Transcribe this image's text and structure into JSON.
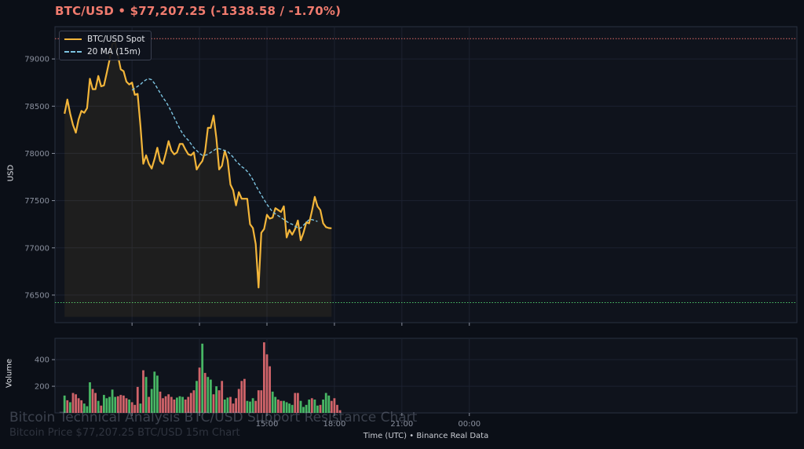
{
  "header": {
    "title": "BTC/USD  •  $77,207.25  (-1338.58 / -1.70%)",
    "color": "#f07b6e"
  },
  "legend": {
    "items": [
      {
        "label": "BTC/USD Spot",
        "style": "solid",
        "color": "#f2b53a"
      },
      {
        "label": "20 MA (15m)",
        "style": "dashed",
        "color": "#7cc3e0"
      }
    ]
  },
  "axes": {
    "price_ylabel": "USD",
    "volume_ylabel": "Volume",
    "xlabel": "Time (UTC)  •  Binance Real Data"
  },
  "watermark": {
    "title": "Bitcoin Technical Analysis BTC/USD Support Resistance Chart",
    "subtitle": "Bitcoin Price $77,207.25 BTC/USD 15m Chart"
  },
  "colors": {
    "background": "#0b0f17",
    "panel": "#0f131c",
    "grid": "#1c2230",
    "price": "#f2b53a",
    "ma": "#7cc3e0",
    "resistance": "#e06a66",
    "support": "#4cc46a",
    "volume_up": "#4cc46a",
    "volume_down": "#e06a70"
  },
  "chart_data": [
    {
      "type": "line",
      "title": "",
      "ylabel": "USD",
      "ylim": [
        76250,
        79300
      ],
      "y_ticks": [
        76500,
        77000,
        77500,
        78000,
        78500,
        79000
      ],
      "x_ticks": [
        {
          "index": 27,
          "label": ""
        },
        {
          "index": 51,
          "label": ""
        },
        {
          "index": 75,
          "label": "15:00"
        },
        {
          "index": 99,
          "label": "18:00"
        },
        {
          "index": 123,
          "label": "21:00"
        },
        {
          "index": 147,
          "label": "00:00"
        }
      ],
      "grid": true,
      "legend_position": "top-left",
      "resistance": 79215,
      "support": 76420,
      "fill_baseline": 76270,
      "series": [
        {
          "name": "BTC/USD Spot",
          "start_index": 3,
          "values": [
            78420,
            78570,
            78420,
            78300,
            78220,
            78360,
            78450,
            78430,
            78480,
            78790,
            78680,
            78680,
            78820,
            78710,
            78720,
            78850,
            78990,
            79160,
            79175,
            79030,
            78890,
            78870,
            78760,
            78730,
            78750,
            78620,
            78630,
            78290,
            77890,
            77980,
            77890,
            77840,
            77940,
            78060,
            77920,
            77890,
            78000,
            78130,
            78030,
            77990,
            78010,
            78100,
            78100,
            78040,
            77990,
            77980,
            78010,
            77830,
            77880,
            77920,
            78020,
            78270,
            78270,
            78400,
            78160,
            77830,
            77870,
            78030,
            77930,
            77670,
            77610,
            77450,
            77590,
            77520,
            77520,
            77520,
            77250,
            77210,
            77040,
            76580,
            77160,
            77200,
            77350,
            77310,
            77320,
            77420,
            77400,
            77380,
            77440,
            77110,
            77190,
            77140,
            77200,
            77290,
            77080,
            77160,
            77270,
            77260,
            77390,
            77540,
            77440,
            77400,
            77260,
            77220,
            77210,
            77207.25
          ]
        },
        {
          "name": "20 MA (15m)",
          "start_index": 27,
          "values": [
            78670,
            78690,
            78710,
            78730,
            78760,
            78780,
            78790,
            78780,
            78740,
            78690,
            78640,
            78590,
            78550,
            78500,
            78440,
            78380,
            78320,
            78260,
            78210,
            78170,
            78140,
            78100,
            78060,
            78030,
            78000,
            77980,
            77980,
            77990,
            78010,
            78030,
            78050,
            78050,
            78040,
            78030,
            78020,
            77990,
            77960,
            77920,
            77890,
            77860,
            77840,
            77810,
            77770,
            77720,
            77660,
            77610,
            77560,
            77510,
            77460,
            77420,
            77380,
            77360,
            77340,
            77320,
            77300,
            77280,
            77260,
            77250,
            77230,
            77210,
            77210,
            77240,
            77270,
            77300,
            77300,
            77290,
            77280
          ]
        }
      ]
    },
    {
      "type": "bar",
      "title": "",
      "ylabel": "Volume",
      "ylim": [
        0,
        560
      ],
      "y_ticks": [
        200,
        400
      ],
      "x_ticks": [
        {
          "index": 27,
          "label": ""
        },
        {
          "index": 51,
          "label": ""
        },
        {
          "index": 75,
          "label": "15:00"
        },
        {
          "index": 99,
          "label": "18:00"
        },
        {
          "index": 123,
          "label": "21:00"
        },
        {
          "index": 147,
          "label": "00:00"
        }
      ],
      "start_index": 3,
      "series": [
        {
          "name": "Volume",
          "values": [
            130,
            95,
            80,
            150,
            140,
            110,
            95,
            70,
            50,
            230,
            180,
            150,
            90,
            55,
            135,
            110,
            120,
            175,
            120,
            125,
            135,
            130,
            110,
            100,
            80,
            60,
            195,
            70,
            320,
            270,
            120,
            180,
            310,
            280,
            160,
            110,
            125,
            140,
            120,
            100,
            115,
            125,
            120,
            100,
            120,
            150,
            170,
            240,
            340,
            520,
            300,
            270,
            250,
            140,
            200,
            170,
            240,
            100,
            115,
            120,
            70,
            110,
            180,
            240,
            255,
            90,
            85,
            110,
            90,
            170,
            170,
            530,
            440,
            350,
            160,
            120,
            100,
            90,
            90,
            80,
            70,
            60,
            150,
            150,
            90,
            45,
            60,
            100,
            110,
            100,
            55,
            60,
            100,
            150,
            130,
            90,
            110,
            60,
            20
          ],
          "directions": [
            "up",
            "down",
            "up",
            "down",
            "down",
            "down",
            "down",
            "up",
            "up",
            "up",
            "down",
            "down",
            "up",
            "down",
            "up",
            "up",
            "up",
            "up",
            "up",
            "down",
            "down",
            "down",
            "down",
            "up",
            "down",
            "down",
            "down",
            "up",
            "down",
            "up",
            "down",
            "up",
            "up",
            "up",
            "down",
            "down",
            "down",
            "down",
            "down",
            "down",
            "up",
            "up",
            "up",
            "down",
            "down",
            "down",
            "down",
            "up",
            "down",
            "up",
            "down",
            "up",
            "up",
            "down",
            "up",
            "down",
            "down",
            "up",
            "up",
            "down",
            "down",
            "down",
            "down",
            "down",
            "down",
            "up",
            "up",
            "up",
            "down",
            "down",
            "down",
            "down",
            "down",
            "down",
            "up",
            "up",
            "down",
            "down",
            "up",
            "up",
            "up",
            "up",
            "down",
            "down",
            "up",
            "up",
            "up",
            "up",
            "down",
            "up",
            "up",
            "down",
            "up",
            "up",
            "up",
            "down",
            "down",
            "down",
            "down"
          ]
        }
      ]
    }
  ]
}
